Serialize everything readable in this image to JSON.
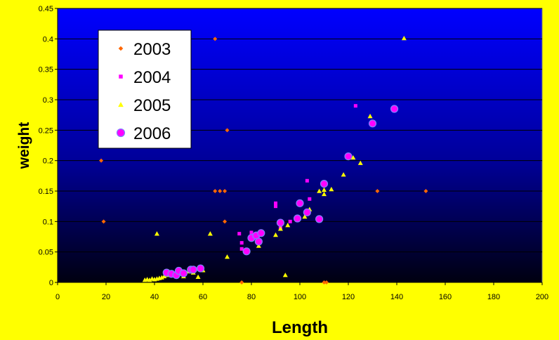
{
  "chart_data": {
    "type": "scatter",
    "title": "",
    "xlabel": "Length",
    "ylabel": "weight",
    "xlim": [
      0,
      200
    ],
    "ylim": [
      0,
      0.45
    ],
    "x_ticks": [
      0,
      20,
      40,
      60,
      80,
      100,
      120,
      140,
      160,
      180,
      200
    ],
    "y_ticks": [
      0,
      0.05,
      0.1,
      0.15,
      0.2,
      0.25,
      0.3,
      0.35,
      0.4,
      0.45
    ],
    "grid": "horizontal",
    "legend_position": "top-left",
    "colors": {
      "page_background": "#ffff00",
      "plot_top": "#0000ff",
      "plot_bottom": "#000010",
      "grid": "#000000"
    },
    "series": [
      {
        "name": "2003",
        "marker": "diamond",
        "color": "#ff6600",
        "points": [
          [
            18,
            0.2
          ],
          [
            19,
            0.1
          ],
          [
            65,
            0.4
          ],
          [
            65,
            0.15
          ],
          [
            67,
            0.15
          ],
          [
            69,
            0.15
          ],
          [
            69,
            0.1
          ],
          [
            70,
            0.25
          ],
          [
            76,
            0
          ],
          [
            110,
            0
          ],
          [
            111,
            0
          ],
          [
            132,
            0.15
          ],
          [
            152,
            0.15
          ]
        ]
      },
      {
        "name": "2004",
        "marker": "square",
        "color": "#ff00ff",
        "points": [
          [
            75,
            0.08
          ],
          [
            76,
            0.065
          ],
          [
            76,
            0.055
          ],
          [
            80,
            0.082
          ],
          [
            82,
            0.08
          ],
          [
            90,
            0.13
          ],
          [
            90,
            0.125
          ],
          [
            92,
            0.09
          ],
          [
            96,
            0.1
          ],
          [
            103,
            0.167
          ],
          [
            104,
            0.137
          ],
          [
            123,
            0.29
          ]
        ]
      },
      {
        "name": "2005",
        "marker": "triangle",
        "color": "#ffff00",
        "points": [
          [
            36,
            0.004
          ],
          [
            37,
            0.005
          ],
          [
            38,
            0.004
          ],
          [
            39,
            0.006
          ],
          [
            40,
            0.005
          ],
          [
            41,
            0.006
          ],
          [
            42,
            0.007
          ],
          [
            43,
            0.008
          ],
          [
            44,
            0.01
          ],
          [
            45,
            0.012
          ],
          [
            46,
            0.013
          ],
          [
            48,
            0.012
          ],
          [
            50,
            0.014
          ],
          [
            52,
            0.01
          ],
          [
            54,
            0.018
          ],
          [
            56,
            0.016
          ],
          [
            58,
            0.009
          ],
          [
            60,
            0.02
          ],
          [
            41,
            0.08
          ],
          [
            63,
            0.08
          ],
          [
            70,
            0.042
          ],
          [
            83,
            0.06
          ],
          [
            90,
            0.078
          ],
          [
            92,
            0.088
          ],
          [
            94,
            0.012
          ],
          [
            95,
            0.094
          ],
          [
            102,
            0.108
          ],
          [
            104,
            0.12
          ],
          [
            108,
            0.15
          ],
          [
            110,
            0.145
          ],
          [
            110,
            0.152
          ],
          [
            113,
            0.153
          ],
          [
            118,
            0.177
          ],
          [
            122,
            0.205
          ],
          [
            125,
            0.196
          ],
          [
            129,
            0.273
          ],
          [
            143,
            0.401
          ]
        ]
      },
      {
        "name": "2006",
        "marker": "circle",
        "color": "#ff00ff",
        "points": [
          [
            45,
            0.016
          ],
          [
            47,
            0.014
          ],
          [
            49,
            0.012
          ],
          [
            50,
            0.019
          ],
          [
            52,
            0.015
          ],
          [
            55,
            0.021
          ],
          [
            56,
            0.021
          ],
          [
            59,
            0.023
          ],
          [
            78,
            0.051
          ],
          [
            80,
            0.073
          ],
          [
            82,
            0.077
          ],
          [
            83,
            0.067
          ],
          [
            84,
            0.081
          ],
          [
            92,
            0.098
          ],
          [
            99,
            0.105
          ],
          [
            100,
            0.13
          ],
          [
            103,
            0.115
          ],
          [
            108,
            0.104
          ],
          [
            110,
            0.162
          ],
          [
            120,
            0.207
          ],
          [
            130,
            0.261
          ],
          [
            139,
            0.285
          ]
        ]
      }
    ]
  }
}
